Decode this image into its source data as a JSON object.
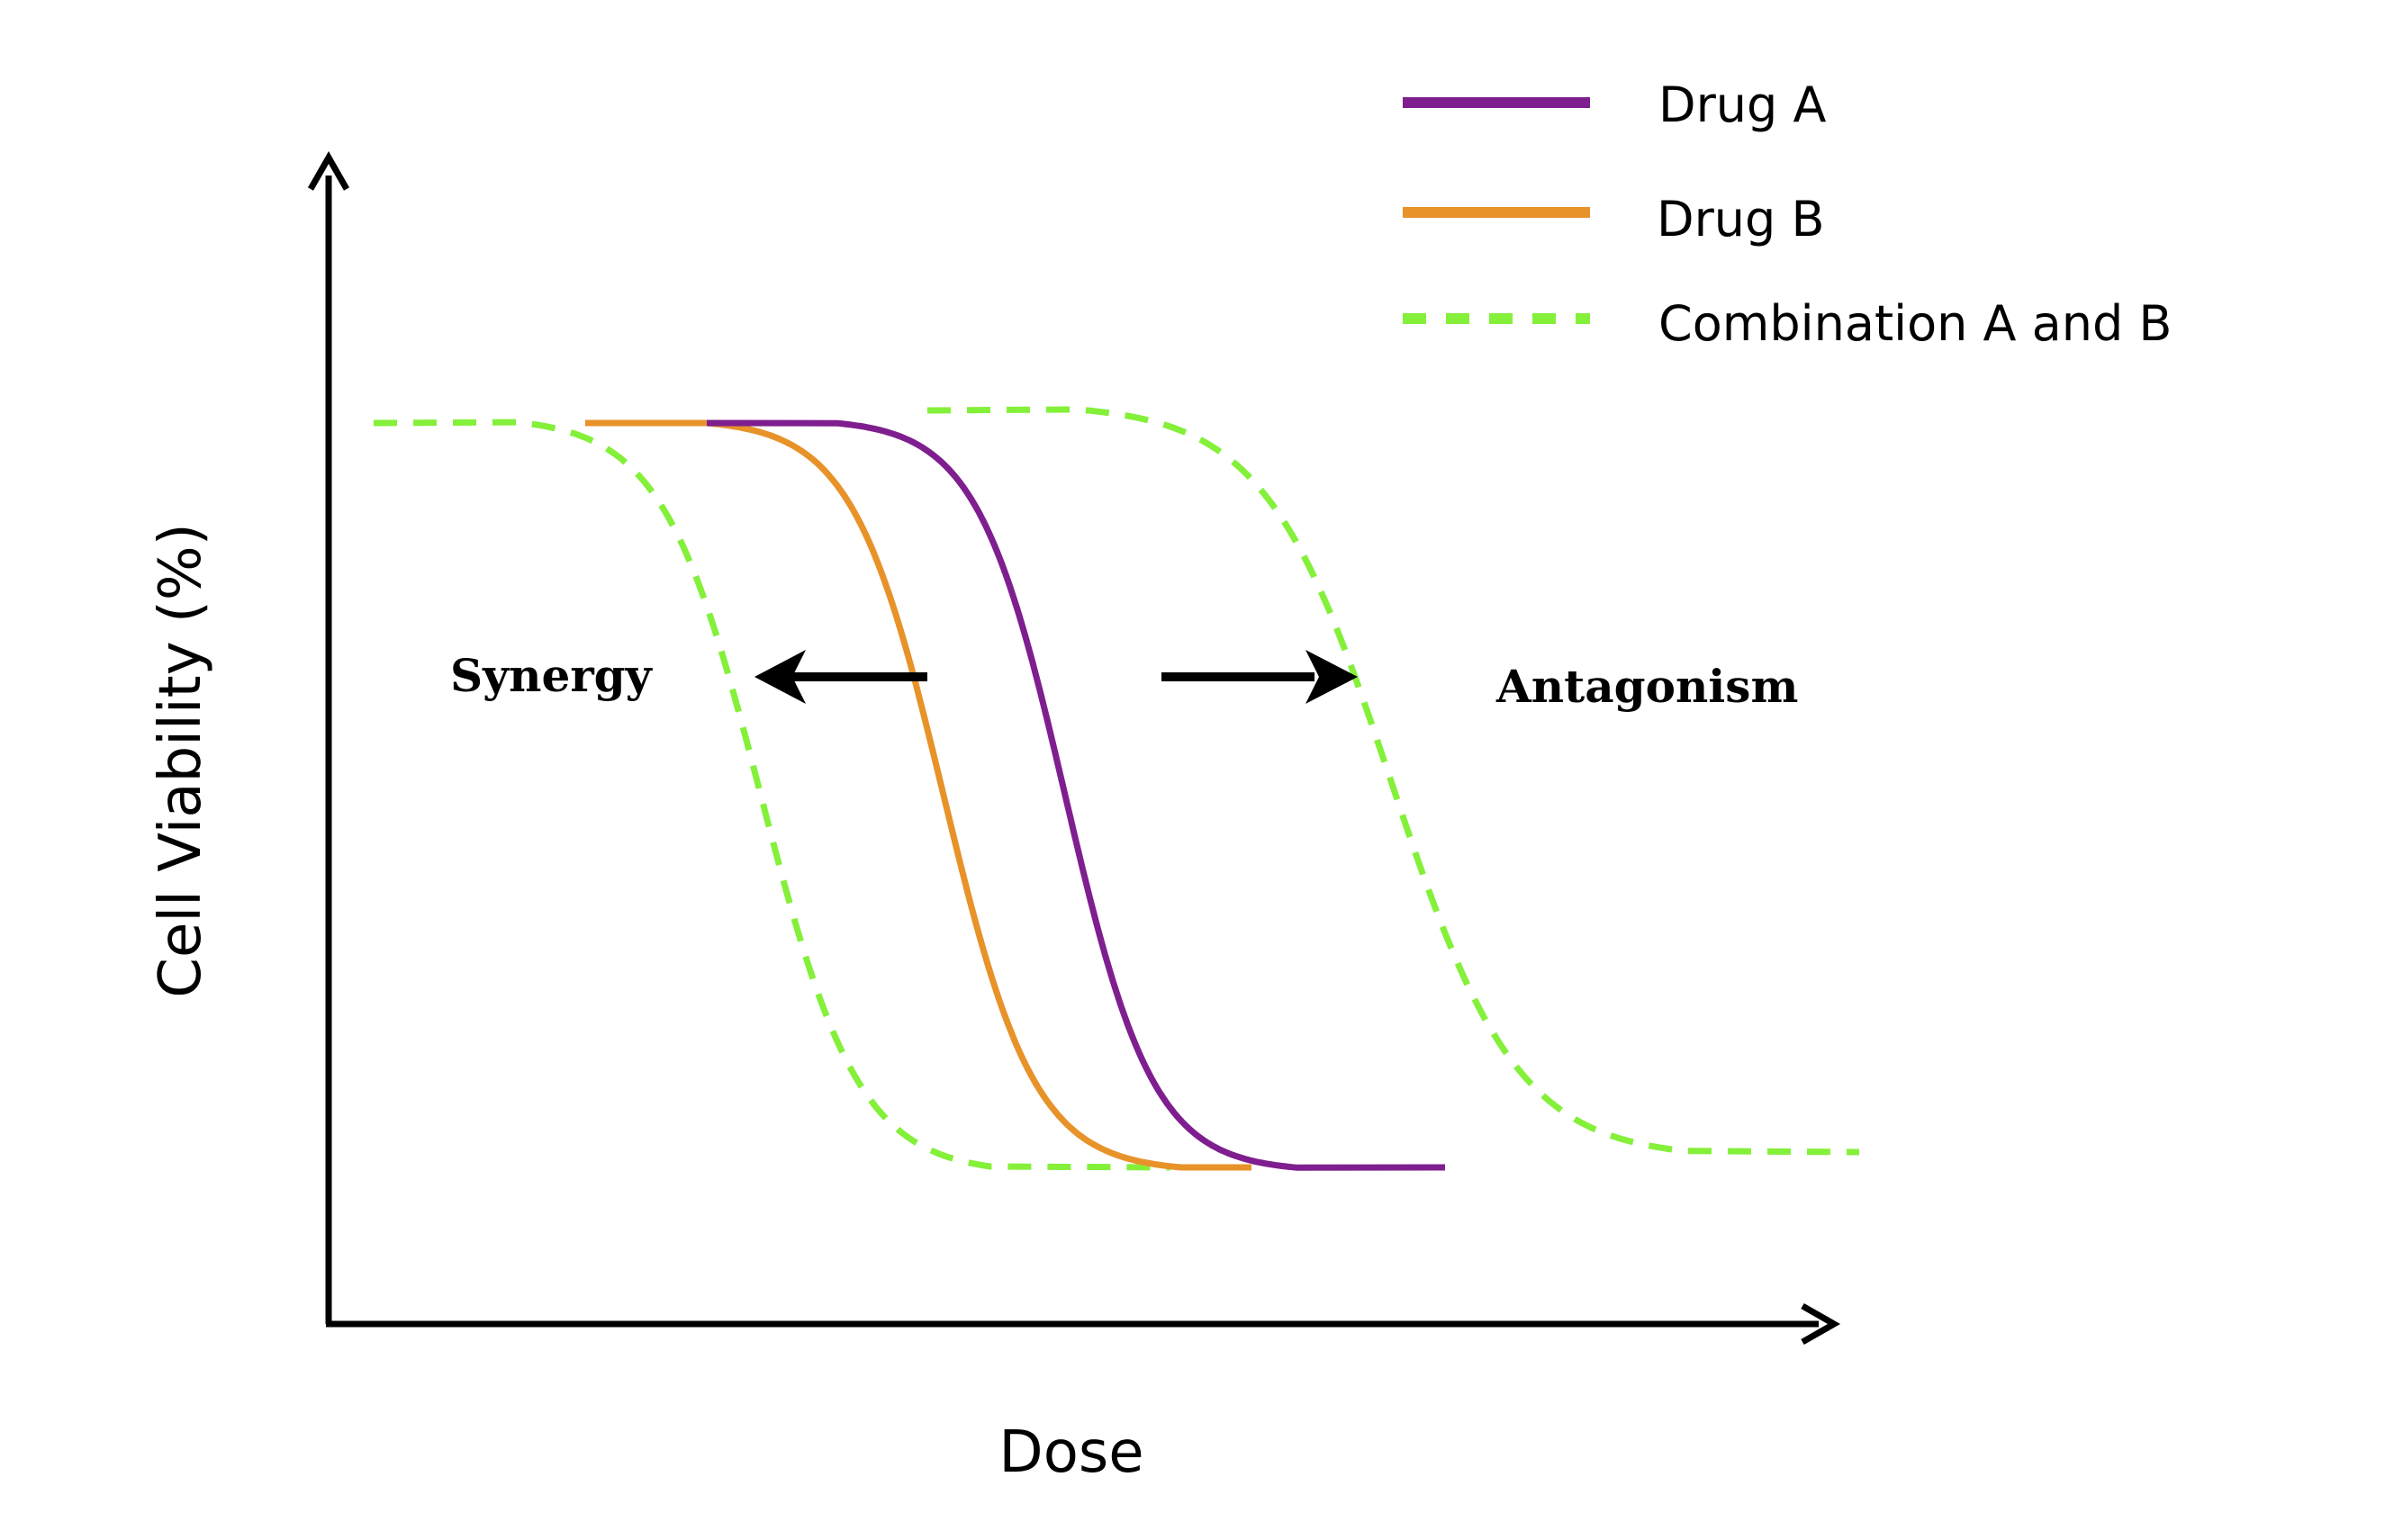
{
  "chart_data": {
    "type": "line",
    "xlabel": "Dose",
    "ylabel": "Cell Viability (%)",
    "legend_placement": "top-right",
    "grid": false,
    "series": [
      {
        "name": "Drug A",
        "color": "#7f1f8f",
        "style": "solid"
      },
      {
        "name": "Drug B",
        "color": "#e8922a",
        "style": "solid"
      },
      {
        "name": "Combination A and B",
        "color": "#84f03a",
        "style": "dashed"
      }
    ],
    "annotations": [
      {
        "text": "Synergy",
        "arrow_direction": "left"
      },
      {
        "text": "Antagonism",
        "arrow_direction": "right"
      }
    ]
  }
}
